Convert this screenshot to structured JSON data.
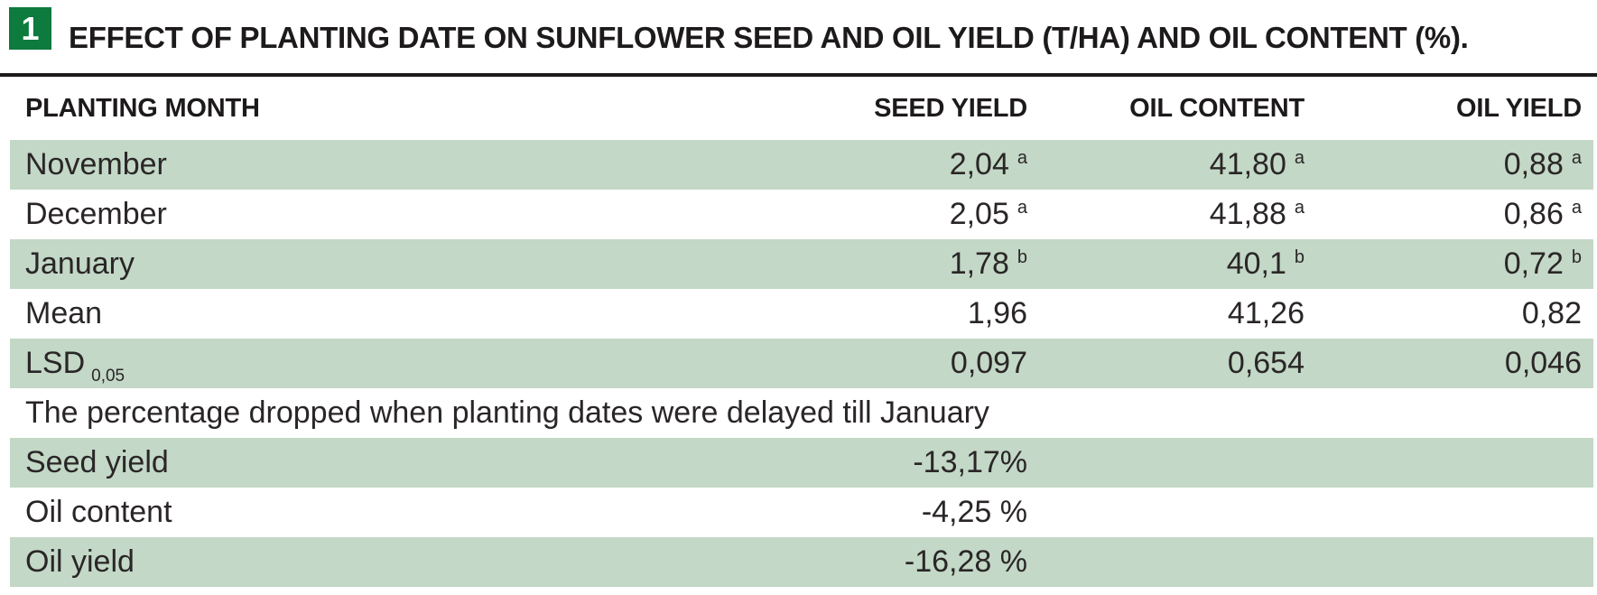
{
  "figure": {
    "badge": "1",
    "title": "EFFECT OF PLANTING DATE ON SUNFLOWER SEED AND OIL YIELD (T/HA) AND OIL CONTENT (%)."
  },
  "table": {
    "headers": [
      "PLANTING MONTH",
      "SEED YIELD",
      "OIL CONTENT",
      "OIL YIELD"
    ],
    "rows": [
      {
        "label": "November",
        "cells": [
          {
            "v": "2,04",
            "s": "a"
          },
          {
            "v": "41,80",
            "s": "a"
          },
          {
            "v": "0,88",
            "s": "a"
          }
        ]
      },
      {
        "label": "December",
        "cells": [
          {
            "v": "2,05",
            "s": "a"
          },
          {
            "v": "41,88",
            "s": "a"
          },
          {
            "v": "0,86",
            "s": "a"
          }
        ]
      },
      {
        "label": "January",
        "cells": [
          {
            "v": "1,78",
            "s": "b"
          },
          {
            "v": "40,1",
            "s": "b"
          },
          {
            "v": "0,72",
            "s": "b"
          }
        ]
      },
      {
        "label": "Mean",
        "cells": [
          {
            "v": "1,96"
          },
          {
            "v": "41,26"
          },
          {
            "v": "0,82"
          }
        ]
      },
      {
        "label": "LSD",
        "label_sub": "0,05",
        "cells": [
          {
            "v": "0,097"
          },
          {
            "v": "0,654"
          },
          {
            "v": "0,046"
          }
        ]
      }
    ],
    "note": "The percentage dropped when planting dates were delayed till January",
    "drops": [
      {
        "label": "Seed yield",
        "value": "-13,17%"
      },
      {
        "label": "Oil content",
        "value": "-4,25 %"
      },
      {
        "label": "Oil yield",
        "value": "-16,28 %"
      }
    ]
  },
  "colors": {
    "row_shade": "#c3d8c6",
    "figure_badge_green": "#0d7a3e",
    "rule_black": "#1d1a1b"
  }
}
